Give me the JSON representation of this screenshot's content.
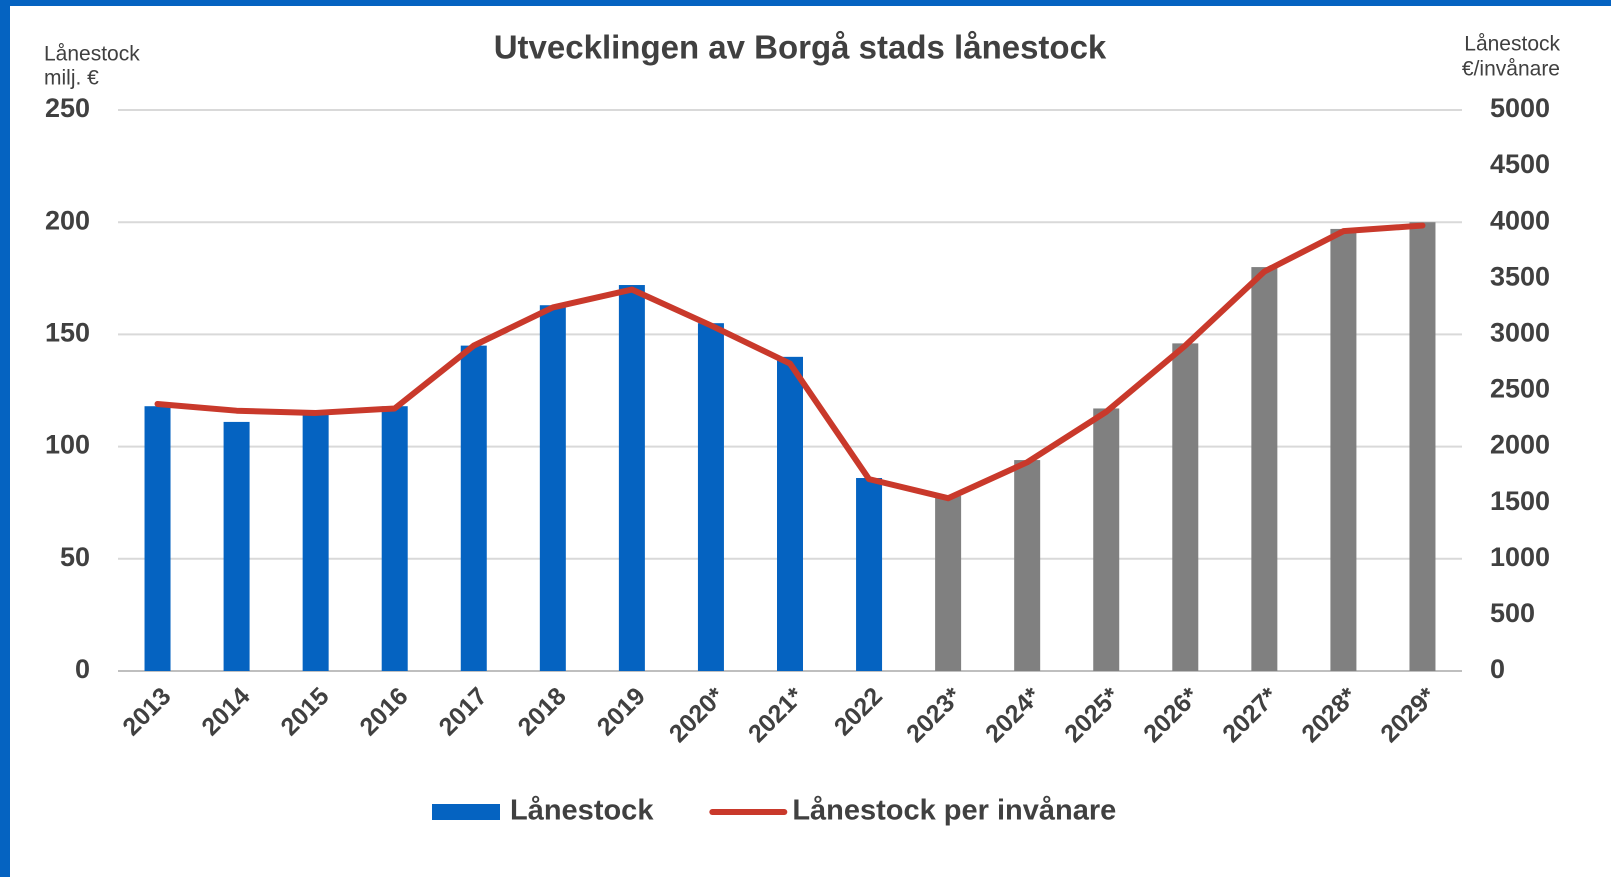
{
  "chart_data": {
    "type": "bar",
    "title": "Utvecklingen av Borgå stads lånestock",
    "y_label": [
      "Lånestock",
      "milj. €"
    ],
    "y2_label": [
      "Lånestock",
      "€/invånare"
    ],
    "categories": [
      "2013",
      "2014",
      "2015",
      "2016",
      "2017",
      "2018",
      "2019",
      "2020*",
      "2021*",
      "2022",
      "2023*",
      "2024*",
      "2025*",
      "2026*",
      "2027*",
      "2028*",
      "2029*"
    ],
    "series": [
      {
        "name": "Lånestock",
        "type": "bar",
        "color": "#0563c1",
        "colors": [
          "#0563c1",
          "#0563c1",
          "#0563c1",
          "#0563c1",
          "#0563c1",
          "#0563c1",
          "#0563c1",
          "#0563c1",
          "#0563c1",
          "#0563c1",
          "#808080",
          "#808080",
          "#808080",
          "#808080",
          "#808080",
          "#808080",
          "#808080"
        ],
        "values": [
          118,
          111,
          115,
          118,
          145,
          163,
          172,
          155,
          140,
          86,
          78,
          94,
          117,
          146,
          180,
          197,
          200
        ]
      },
      {
        "name": "Lånestock per invånare",
        "type": "line",
        "axis": "y2",
        "color": "#c9392b",
        "values": [
          2380,
          2320,
          2300,
          2340,
          2900,
          3240,
          3400,
          3080,
          2740,
          1710,
          1540,
          1860,
          2310,
          2900,
          3560,
          3920,
          3970
        ]
      }
    ],
    "ylim": [
      0,
      250
    ],
    "yticks": [
      0,
      50,
      100,
      150,
      200,
      250
    ],
    "y2lim": [
      0,
      5000
    ],
    "y2ticks": [
      0,
      500,
      1000,
      1500,
      2000,
      2500,
      3000,
      3500,
      4000,
      4500,
      5000
    ],
    "grid": true,
    "legend": "bottom"
  }
}
